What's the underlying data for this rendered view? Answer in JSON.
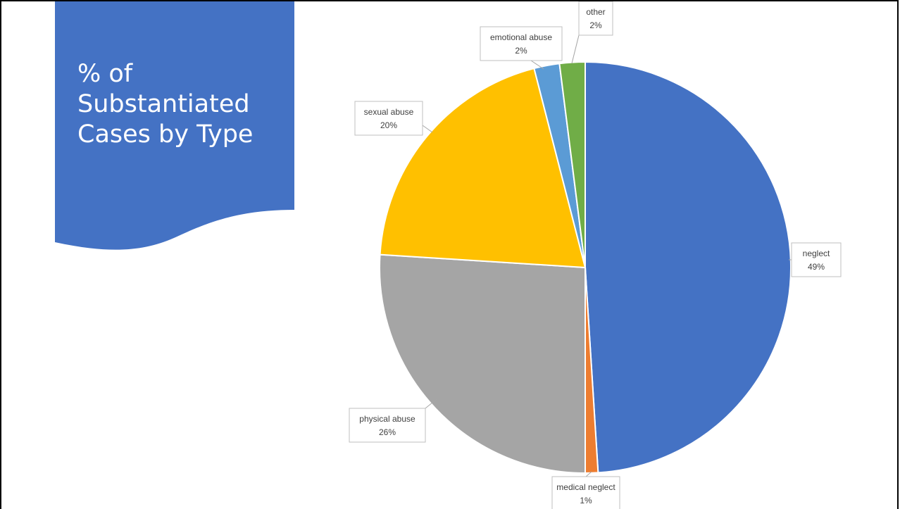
{
  "slide": {
    "title": "% of Substantiated Cases by Type"
  },
  "chart_data": {
    "type": "pie",
    "title": "",
    "start_angle_deg": 0,
    "direction": "clockwise",
    "legend": "none",
    "slices": [
      {
        "label": "neglect",
        "value": 49,
        "value_label": "49%",
        "color": "#4472c4"
      },
      {
        "label": "medical neglect",
        "value": 1,
        "value_label": "1%",
        "color": "#ed7d31"
      },
      {
        "label": "physical abuse",
        "value": 26,
        "value_label": "26%",
        "color": "#a5a5a5"
      },
      {
        "label": "sexual abuse",
        "value": 20,
        "value_label": "20%",
        "color": "#ffc000"
      },
      {
        "label": "emotional abuse",
        "value": 2,
        "value_label": "2%",
        "color": "#5b9bd5"
      },
      {
        "label": "other",
        "value": 2,
        "value_label": "2%",
        "color": "#70ad47"
      }
    ]
  }
}
